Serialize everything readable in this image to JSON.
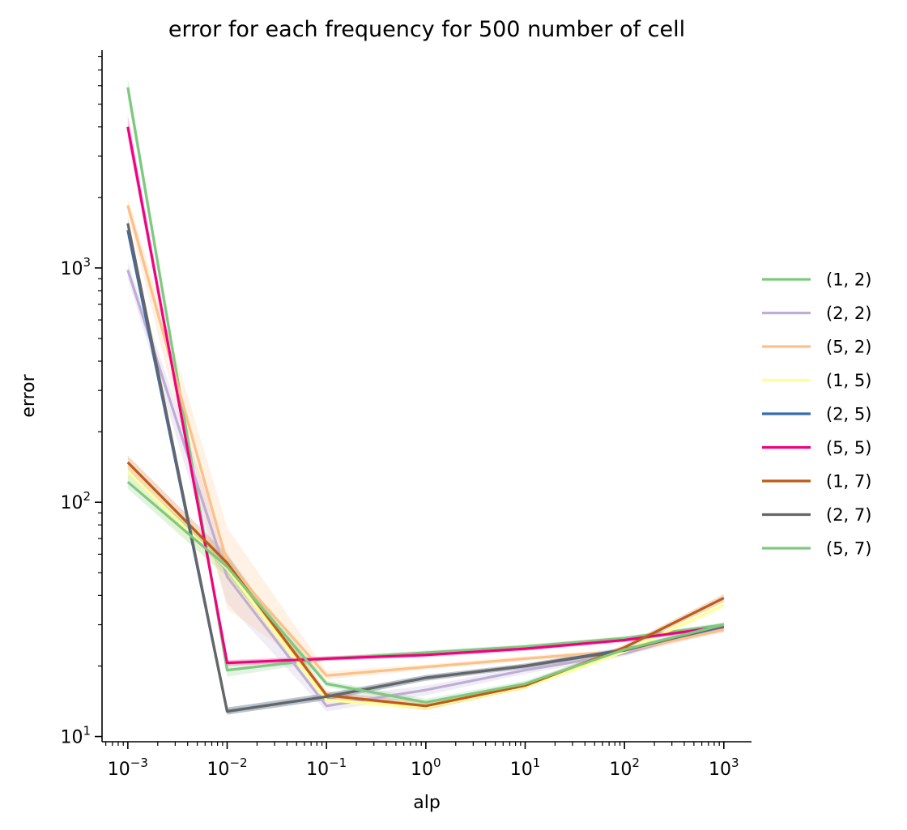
{
  "chart_data": {
    "type": "line",
    "title": "error for each frequency for 500 number of cell",
    "xlabel": "alp",
    "ylabel": "error",
    "xscale": "log",
    "yscale": "log",
    "x": [
      0.001,
      0.01,
      0.1,
      1,
      10,
      100,
      1000
    ],
    "xlim": [
      0.00055,
      1900
    ],
    "ylim": [
      9.5,
      8500
    ],
    "xticks": [
      {
        "value": 0.001,
        "base": "10",
        "exp": "−3"
      },
      {
        "value": 0.01,
        "base": "10",
        "exp": "−2"
      },
      {
        "value": 0.1,
        "base": "10",
        "exp": "−1"
      },
      {
        "value": 1,
        "base": "10",
        "exp": "0"
      },
      {
        "value": 10,
        "base": "10",
        "exp": "1"
      },
      {
        "value": 100,
        "base": "10",
        "exp": "2"
      },
      {
        "value": 1000,
        "base": "10",
        "exp": "3"
      }
    ],
    "yticks": [
      {
        "value": 10,
        "base": "10",
        "exp": "1"
      },
      {
        "value": 100,
        "base": "10",
        "exp": "2"
      },
      {
        "value": 1000,
        "base": "10",
        "exp": "3"
      }
    ],
    "grid": false,
    "legend_position": "right",
    "series": [
      {
        "name": "(1, 2)",
        "color": "#7fc97f",
        "values": [
          5900,
          19.2,
          21.5,
          22.8,
          24.2,
          26.3,
          30
        ],
        "band_upper": [
          6500,
          21,
          22,
          23.3,
          24.7,
          26.8,
          30.7
        ],
        "band_lower": [
          5300,
          18,
          21,
          22.3,
          23.7,
          25.8,
          29.3
        ]
      },
      {
        "name": "(2, 2)",
        "color": "#beaed4",
        "values": [
          980,
          48,
          13.5,
          15.8,
          19.2,
          22.6,
          29.5
        ],
        "band_upper": [
          1060,
          60,
          14.6,
          16.5,
          19.8,
          23.3,
          30.5
        ],
        "band_lower": [
          900,
          37,
          12.8,
          15,
          18.5,
          22,
          28.5
        ]
      },
      {
        "name": "(5, 2)",
        "color": "#fdc086",
        "values": [
          1850,
          55,
          18.2,
          19.8,
          21.5,
          23.2,
          28.5
        ],
        "band_upper": [
          2000,
          78,
          19,
          20.3,
          22,
          23.8,
          29.3
        ],
        "band_lower": [
          1700,
          35,
          17.5,
          19.3,
          21,
          22.6,
          27.8
        ]
      },
      {
        "name": "(1, 5)",
        "color": "#ffff99",
        "values": [
          135,
          52,
          14.3,
          13.3,
          16.3,
          23,
          36.5
        ],
        "band_upper": [
          150,
          57,
          15.3,
          13.8,
          16.8,
          23.5,
          38
        ],
        "band_lower": [
          122,
          46,
          13.8,
          12.9,
          15.8,
          22.5,
          35
        ]
      },
      {
        "name": "(2, 5)",
        "color": "#386cb0",
        "values": [
          1450,
          12.8,
          14.8,
          17.8,
          20,
          23.5,
          29.5
        ],
        "band_upper": [
          1550,
          13.3,
          15.3,
          18.3,
          20.5,
          24,
          30.2
        ],
        "band_lower": [
          1350,
          12.4,
          14.3,
          17.3,
          19.5,
          23,
          28.8
        ]
      },
      {
        "name": "(5, 5)",
        "color": "#f0027f",
        "values": [
          4000,
          20.6,
          21.5,
          22.3,
          23.7,
          25.8,
          29.5
        ],
        "band_upper": [
          4500,
          21.2,
          22,
          22.8,
          24.2,
          26.3,
          30.2
        ],
        "band_lower": [
          3600,
          20,
          21,
          21.8,
          23.2,
          25.3,
          28.8
        ]
      },
      {
        "name": "(1, 7)",
        "color": "#bf5b17",
        "values": [
          148,
          55,
          15,
          13.5,
          16.5,
          24,
          39
        ],
        "band_upper": [
          158,
          60,
          15.6,
          14,
          17,
          24.6,
          40.5
        ],
        "band_lower": [
          138,
          50,
          14.5,
          13,
          16,
          23.5,
          37.5
        ]
      },
      {
        "name": "(2, 7)",
        "color": "#666666",
        "values": [
          1550,
          12.8,
          14.8,
          17.8,
          20,
          23.3,
          29.8
        ],
        "band_upper": [
          1650,
          13.3,
          15.3,
          18.3,
          20.5,
          23.8,
          30.5
        ],
        "band_lower": [
          1450,
          12.4,
          14.3,
          17.3,
          19.5,
          22.8,
          29
        ]
      },
      {
        "name": "(5, 7)",
        "color": "#7fc97f",
        "values": [
          122,
          53,
          16.8,
          14,
          16.8,
          23.5,
          30
        ],
        "band_upper": [
          132,
          58,
          17.3,
          14.5,
          17.3,
          24,
          30.7
        ],
        "band_lower": [
          114,
          48,
          16.3,
          13.6,
          16.3,
          23,
          29.3
        ]
      }
    ]
  }
}
